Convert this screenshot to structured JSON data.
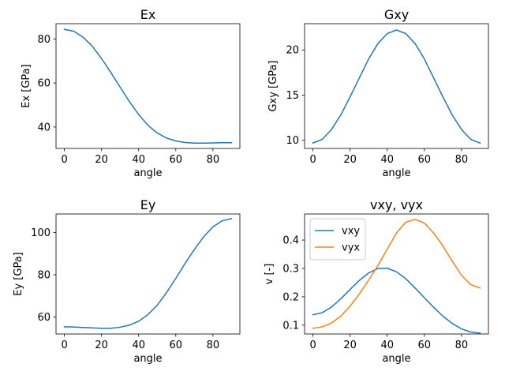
{
  "chart_data": [
    {
      "type": "line",
      "title": "Ex",
      "xlabel": "angle",
      "ylabel": "Ex [GPa]",
      "xlim": [
        -4.5,
        94.5
      ],
      "ylim": [
        30.3,
        86.9
      ],
      "xticks": [
        0,
        20,
        40,
        60,
        80
      ],
      "yticks": [
        40,
        60,
        80
      ],
      "grid": false,
      "x": [
        0,
        5,
        10,
        15,
        20,
        25,
        30,
        35,
        40,
        45,
        50,
        55,
        60,
        65,
        70,
        75,
        80,
        85,
        90
      ],
      "series": [
        {
          "name": "",
          "color": "#1f77b4",
          "values": [
            84.3,
            83.5,
            80.8,
            76.7,
            71.1,
            64.8,
            58.1,
            51.6,
            45.7,
            40.8,
            37.3,
            35.0,
            33.7,
            33.0,
            32.7,
            32.7,
            32.8,
            32.9,
            32.9
          ]
        }
      ]
    },
    {
      "type": "line",
      "title": "Gxy",
      "xlabel": "angle",
      "ylabel": "Gxy [GPa]",
      "xlim": [
        -4.5,
        94.5
      ],
      "ylim": [
        9.1,
        22.9
      ],
      "xticks": [
        0,
        20,
        40,
        60,
        80
      ],
      "yticks": [
        10,
        15,
        20
      ],
      "grid": false,
      "x": [
        0,
        5,
        10,
        15,
        20,
        25,
        30,
        35,
        40,
        45,
        50,
        55,
        60,
        65,
        70,
        75,
        80,
        85,
        90
      ],
      "series": [
        {
          "name": "",
          "color": "#1f77b4",
          "values": [
            9.7,
            10.1,
            11.2,
            12.8,
            14.8,
            16.9,
            19.0,
            20.7,
            21.8,
            22.2,
            21.8,
            20.7,
            19.0,
            16.9,
            14.8,
            12.8,
            11.2,
            10.1,
            9.7
          ]
        }
      ]
    },
    {
      "type": "line",
      "title": "Ey",
      "xlabel": "angle",
      "ylabel": "Ey [GPa]",
      "xlim": [
        -4.5,
        94.5
      ],
      "ylim": [
        52.0,
        108.8
      ],
      "xticks": [
        0,
        20,
        40,
        60,
        80
      ],
      "yticks": [
        60,
        80,
        100
      ],
      "grid": false,
      "x": [
        0,
        5,
        10,
        15,
        20,
        25,
        30,
        35,
        40,
        45,
        50,
        55,
        60,
        65,
        70,
        75,
        80,
        85,
        90
      ],
      "series": [
        {
          "name": "",
          "color": "#1f77b4",
          "values": [
            55.4,
            55.3,
            55.1,
            54.9,
            54.7,
            54.7,
            55.2,
            56.2,
            58.0,
            61.2,
            65.6,
            71.6,
            78.3,
            85.4,
            92.0,
            98.0,
            102.7,
            105.6,
            106.6
          ]
        }
      ]
    },
    {
      "type": "line",
      "title": "vxy, vyx",
      "xlabel": "angle",
      "ylabel": "v [-]",
      "xlim": [
        -4.5,
        94.5
      ],
      "ylim": [
        0.069,
        0.492
      ],
      "xticks": [
        0,
        20,
        40,
        60,
        80
      ],
      "yticks": [
        0.1,
        0.2,
        0.3,
        0.4
      ],
      "grid": false,
      "legend": "upper-left",
      "x": [
        0,
        5,
        10,
        15,
        20,
        25,
        30,
        35,
        40,
        45,
        50,
        55,
        60,
        65,
        70,
        75,
        80,
        85,
        90
      ],
      "series": [
        {
          "name": "vxy",
          "color": "#1f77b4",
          "values": [
            0.137,
            0.144,
            0.164,
            0.193,
            0.226,
            0.258,
            0.284,
            0.3,
            0.301,
            0.288,
            0.264,
            0.231,
            0.197,
            0.163,
            0.132,
            0.106,
            0.087,
            0.076,
            0.072
          ]
        },
        {
          "name": "vyx",
          "color": "#ff7f0e",
          "values": [
            0.089,
            0.094,
            0.108,
            0.132,
            0.167,
            0.21,
            0.259,
            0.31,
            0.368,
            0.425,
            0.463,
            0.473,
            0.46,
            0.425,
            0.379,
            0.326,
            0.276,
            0.243,
            0.231
          ]
        }
      ]
    }
  ]
}
